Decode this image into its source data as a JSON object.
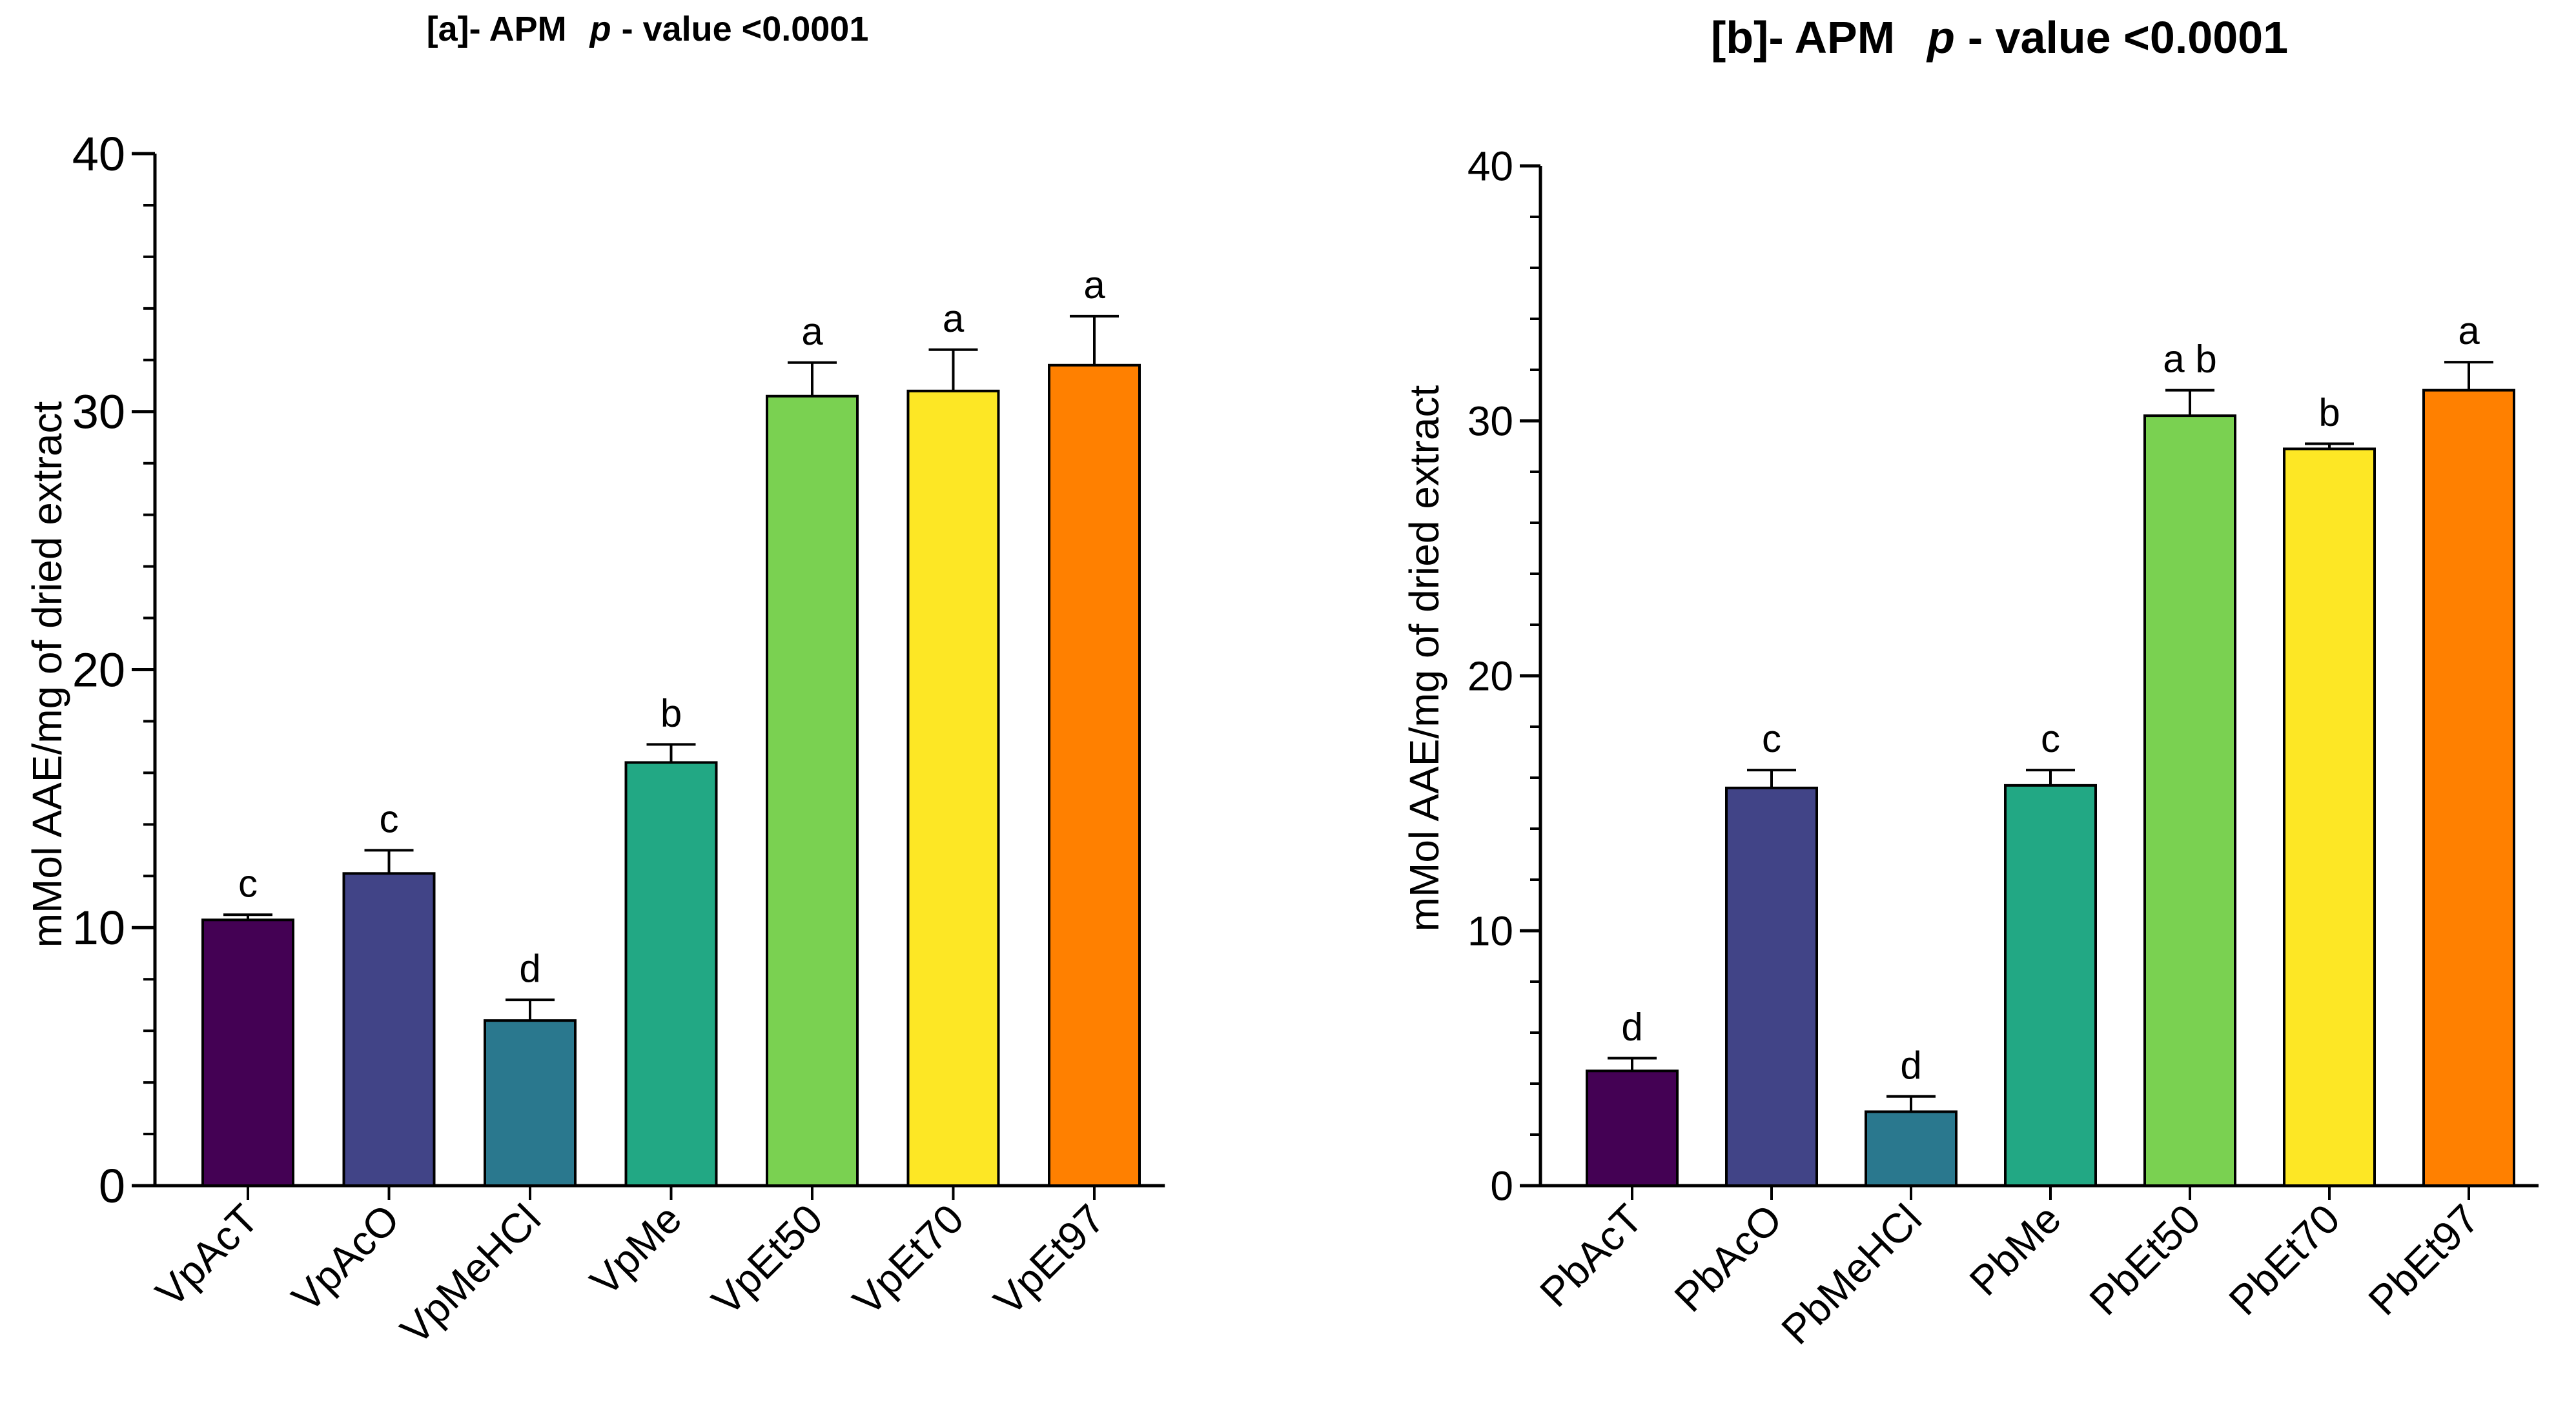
{
  "chart_data": [
    {
      "type": "bar",
      "title_prefix": "[a]- APM",
      "title_p": "p",
      "title_suffix": "- value <0.0001",
      "xlabel": "",
      "ylabel": "mMol AAE/mg of dried extract",
      "ylim": [
        0,
        40
      ],
      "yticks": [
        "0",
        "10",
        "20",
        "30",
        "40"
      ],
      "grid": false,
      "categories": [
        "VpAcT",
        "VpAcO",
        "VpMeHCl",
        "VpMe",
        "VpEt50",
        "VpEt70",
        "VpEt97"
      ],
      "values": [
        10.3,
        12.1,
        6.4,
        16.4,
        30.6,
        30.8,
        31.8
      ],
      "errors": [
        0.2,
        0.9,
        0.8,
        0.7,
        1.3,
        1.6,
        1.9
      ],
      "letters": [
        "c",
        "c",
        "d",
        "b",
        "a",
        "a",
        "a"
      ],
      "colors": [
        "#440154",
        "#414487",
        "#2a788e",
        "#22a884",
        "#7ad151",
        "#fde725",
        "#ff8000"
      ]
    },
    {
      "type": "bar",
      "title_prefix": "[b]- APM",
      "title_p": "p",
      "title_suffix": "- value <0.0001",
      "xlabel": "",
      "ylabel": "mMol AAE/mg of dried extract",
      "ylim": [
        0,
        40
      ],
      "yticks": [
        "0",
        "10",
        "20",
        "30",
        "40"
      ],
      "grid": false,
      "categories": [
        "PbAcT",
        "PbAcO",
        "PbMeHCl",
        "PbMe",
        "PbEt50",
        "PbEt70",
        "PbEt97"
      ],
      "values": [
        4.5,
        15.6,
        2.9,
        15.7,
        30.2,
        28.9,
        31.2
      ],
      "errors": [
        0.5,
        0.7,
        0.6,
        0.6,
        1.0,
        0.2,
        1.1
      ],
      "letters": [
        "d",
        "c",
        "d",
        "c",
        "a b",
        "b",
        "a"
      ],
      "colors": [
        "#440154",
        "#414487",
        "#2a788e",
        "#22a884",
        "#7ad151",
        "#fde725",
        "#ff8000"
      ]
    }
  ]
}
